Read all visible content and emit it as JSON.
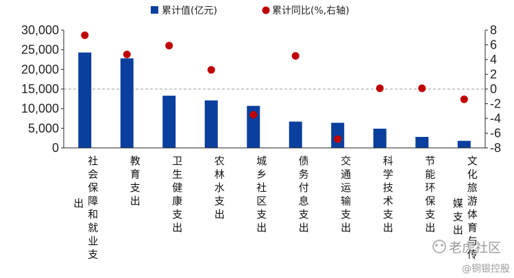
{
  "chart_data": {
    "type": "bar",
    "categories": [
      "社会保障和就业支出",
      "教育支出",
      "卫生健康支出",
      "农林水支出",
      "城乡社区支出",
      "债务付息支出",
      "交通运输支出",
      "科学技术支出",
      "节能环保支出",
      "文化旅游体育与传媒支出"
    ],
    "series": [
      {
        "name": "累计值(亿元)",
        "type": "bar",
        "axis": "left",
        "values": [
          24300,
          22800,
          13300,
          12100,
          10700,
          6700,
          6400,
          4900,
          2800,
          1800
        ]
      },
      {
        "name": "累计同比(%,右轴)",
        "type": "scatter",
        "axis": "right",
        "values": [
          7.3,
          4.7,
          5.9,
          2.6,
          -3.5,
          4.5,
          -6.8,
          0.1,
          0.1,
          -1.4
        ]
      }
    ],
    "ylim_left": [
      0,
      30000
    ],
    "ylim_right": [
      -8,
      8
    ],
    "yticks_left": [
      "0",
      "5,000",
      "10,000",
      "15,000",
      "20,000",
      "25,000",
      "30,000"
    ],
    "yticks_right": [
      "-8",
      "-6",
      "-4",
      "-2",
      "0",
      "2",
      "4",
      "6",
      "8"
    ],
    "zero_line_right": 0,
    "legend": {
      "position": "top-center",
      "items": [
        {
          "label": "累计值(亿元)",
          "marker": "square",
          "color": "#0a3f9e"
        },
        {
          "label": "累计同比(%,右轴)",
          "marker": "circle",
          "color": "#c00000"
        }
      ]
    },
    "colors": {
      "bar": "#0a3f9e",
      "dot": "#c00000",
      "axis": "#222222",
      "zero_line": "#9a9a9a"
    }
  },
  "watermark": {
    "line1": "老虎社区",
    "line2": "@铜银控股"
  }
}
